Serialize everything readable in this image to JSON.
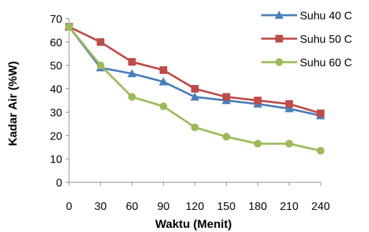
{
  "chart_data": {
    "type": "line",
    "xlabel": "Waktu (Menit)",
    "ylabel": "Kadar Air (%W)",
    "x": [
      0,
      30,
      60,
      90,
      120,
      150,
      180,
      210,
      240
    ],
    "x_tick_labels": [
      "0",
      "30",
      "60",
      "90",
      "120",
      "150",
      "180",
      "210",
      "240"
    ],
    "y_tick_labels": [
      "0",
      "10",
      "20",
      "30",
      "40",
      "50",
      "60",
      "70"
    ],
    "ylim": [
      0,
      70
    ],
    "grid": false,
    "legend_position": "top-right",
    "series": [
      {
        "name": "Suhu 40 C",
        "color": "#4a7ebb",
        "marker": "triangle",
        "values": [
          66.5,
          49,
          46.5,
          43,
          36.5,
          35,
          33.5,
          31.5,
          28.5
        ]
      },
      {
        "name": "Suhu 50 C",
        "color": "#be4b48",
        "marker": "square",
        "values": [
          66.5,
          60,
          51.5,
          48,
          40,
          36.5,
          35,
          33.5,
          29.5
        ]
      },
      {
        "name": "Suhu 60 C",
        "color": "#9bbb59",
        "marker": "circle",
        "values": [
          66.5,
          50,
          36.5,
          32.5,
          23.5,
          19.5,
          16.5,
          16.5,
          13.5
        ]
      }
    ]
  }
}
